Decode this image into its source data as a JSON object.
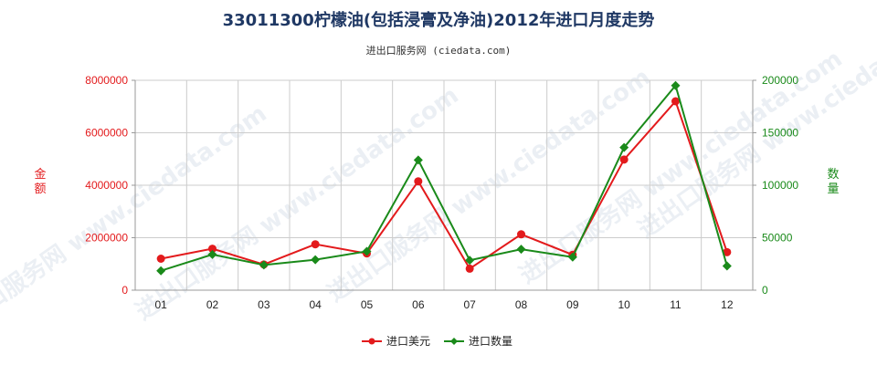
{
  "title": "33011300柠檬油(包括浸膏及净油)2012年进口月度走势",
  "subtitle": "进出口服务网 (ciedata.com)",
  "watermark": "进出口服务网 www.ciedata.com",
  "chart_data": {
    "type": "line",
    "categories": [
      "01",
      "02",
      "03",
      "04",
      "05",
      "06",
      "07",
      "08",
      "09",
      "10",
      "11",
      "12"
    ],
    "y_left": {
      "label": "金额",
      "ticks": [
        "0",
        "2000000",
        "4000000",
        "6000000",
        "8000000"
      ],
      "range": [
        0,
        8000000
      ],
      "color": "#e31a1c"
    },
    "y_right": {
      "label": "数量",
      "ticks": [
        "0",
        "50000",
        "100000",
        "150000",
        "200000"
      ],
      "range": [
        0,
        200000
      ],
      "color": "#1a8a1a"
    },
    "series": [
      {
        "name": "进口美元",
        "axis": "left",
        "color": "#e31a1c",
        "marker": "circle",
        "values": [
          1200000,
          1580000,
          980000,
          1750000,
          1400000,
          4150000,
          820000,
          2130000,
          1350000,
          4980000,
          7200000,
          1450000
        ]
      },
      {
        "name": "进口数量",
        "axis": "right",
        "color": "#1a8a1a",
        "marker": "diamond",
        "values": [
          18500,
          34000,
          24000,
          29000,
          37000,
          124000,
          28500,
          39000,
          31500,
          136000,
          195000,
          23000
        ]
      }
    ],
    "grid": true,
    "legend_position": "bottom-center"
  }
}
